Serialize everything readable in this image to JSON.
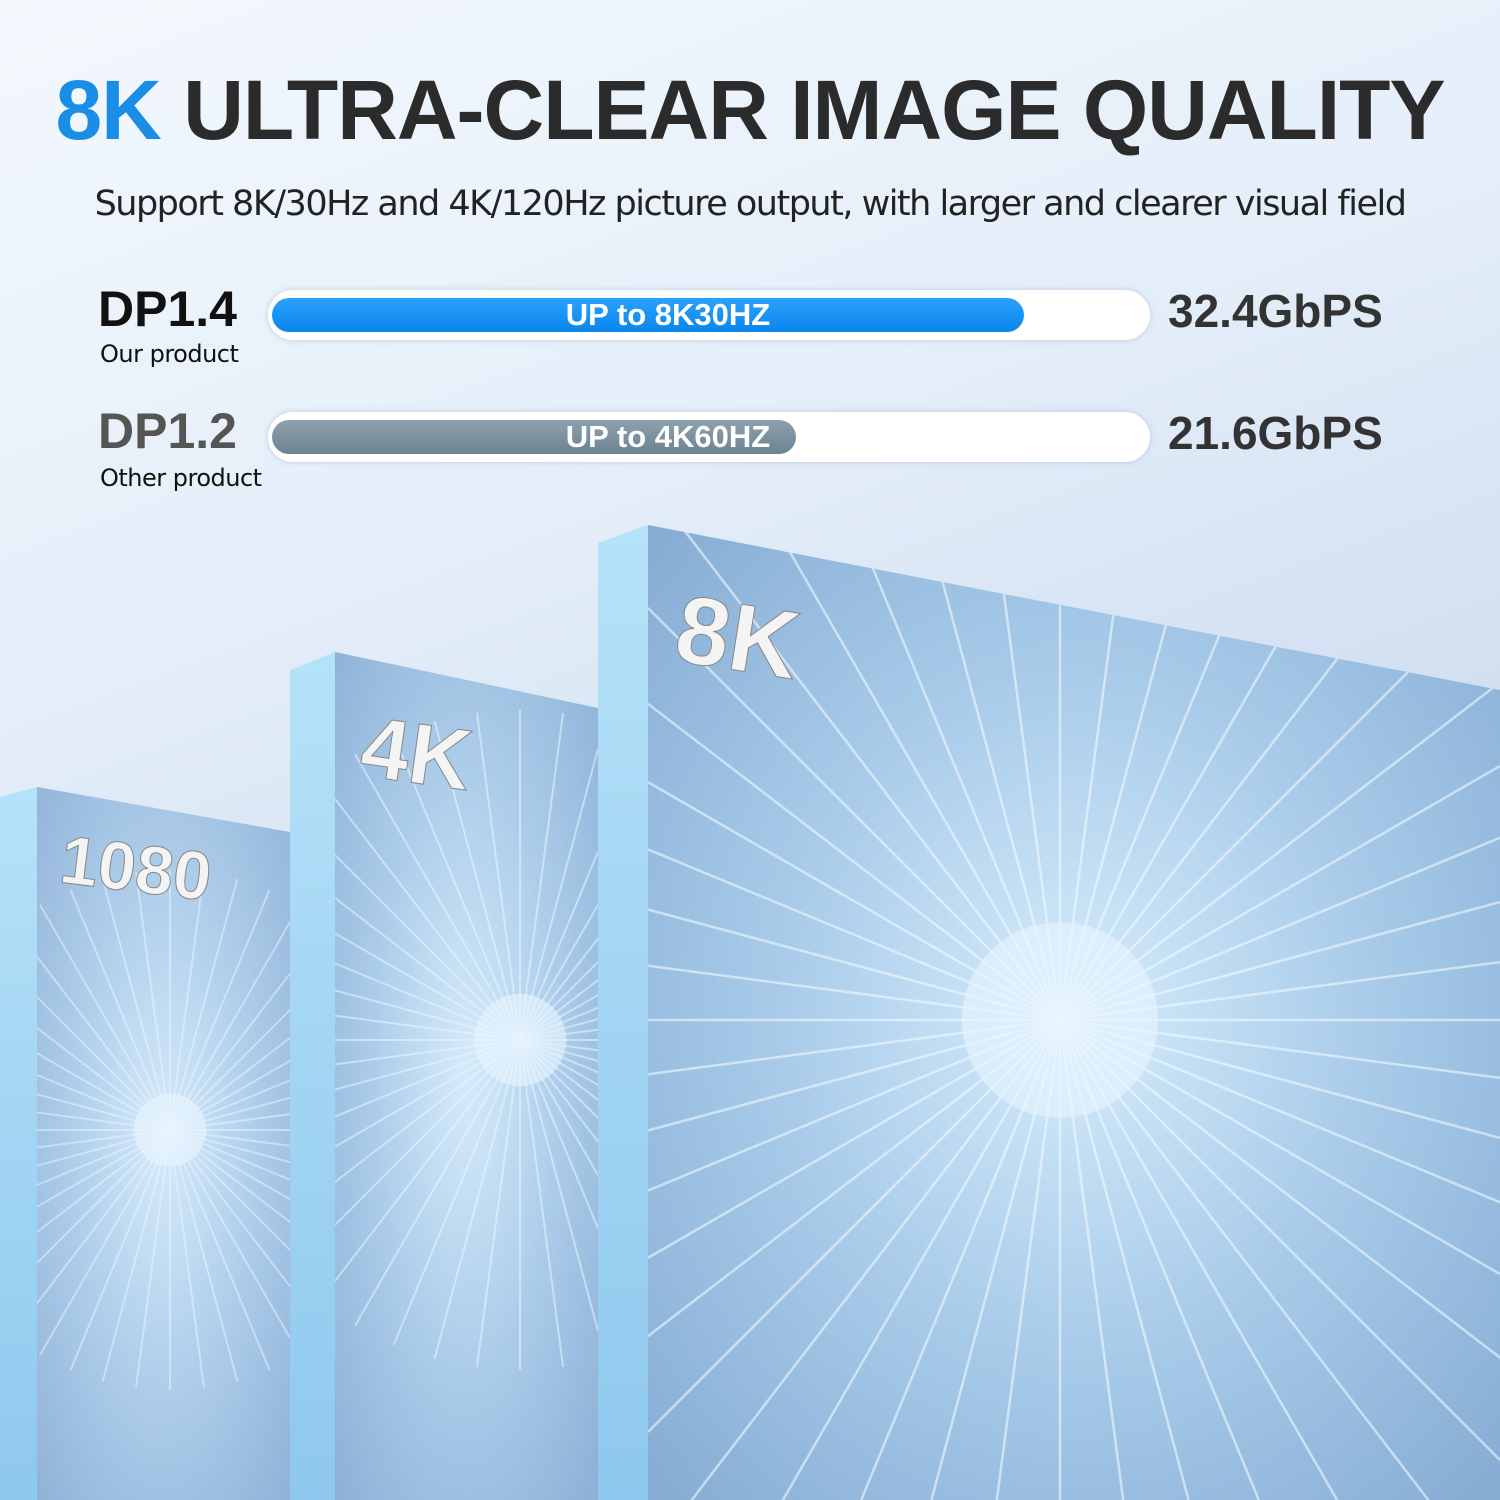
{
  "header": {
    "title_accent": "8K",
    "title_rest": "ULTRA-CLEAR IMAGE QUALITY",
    "subtitle": "Support 8K/30Hz and 4K/120Hz picture output, with larger and clearer visual field"
  },
  "comparison": [
    {
      "name": "DP1.4",
      "caption": "Our product",
      "bar_label": "UP to 8K30HZ",
      "fill_fraction": 0.86,
      "bandwidth": "32.4GbPS",
      "color": "#0a8ef0",
      "label_color": "#111111"
    },
    {
      "name": "DP1.2",
      "caption": "Other product",
      "bar_label": "UP to 4K60HZ",
      "fill_fraction": 0.6,
      "bandwidth": "21.6GbPS",
      "color": "#7a8f9e",
      "label_color": "#555555"
    }
  ],
  "panels": [
    {
      "label": "1080"
    },
    {
      "label": "4K"
    },
    {
      "label": "8K"
    }
  ],
  "colors": {
    "accent": "#1a8ee6",
    "panel_side": "#a9daf5",
    "panel_face": "#9cc3e6"
  }
}
